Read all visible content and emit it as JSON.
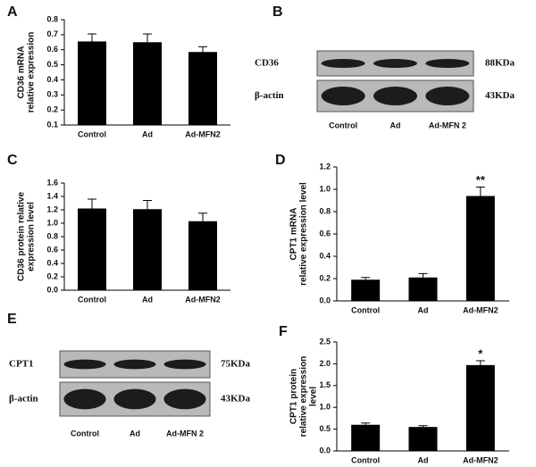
{
  "chart_data": [
    {
      "type": "bar",
      "panel": "A",
      "ylabel": [
        "CD36 mRNA",
        "relative expression"
      ],
      "categories": [
        "Control",
        "Ad",
        "Ad-MFN2"
      ],
      "series": [
        {
          "color": "#000000",
          "values": [
            0.655,
            0.65,
            0.585
          ],
          "errors": [
            0.05,
            0.055,
            0.035
          ]
        }
      ],
      "ylim": [
        0.1,
        0.8
      ],
      "yticks": [
        0.1,
        0.2,
        0.3,
        0.4,
        0.5,
        0.6,
        0.7,
        0.8
      ]
    },
    {
      "type": "bar",
      "panel": "C",
      "ylabel": [
        "CD36 protein relative",
        "expression level"
      ],
      "categories": [
        "Control",
        "Ad",
        "Ad-MFN2"
      ],
      "series": [
        {
          "color": "#000000",
          "values": [
            1.22,
            1.21,
            1.03
          ],
          "errors": [
            0.14,
            0.13,
            0.12
          ]
        }
      ],
      "ylim": [
        0,
        1.6
      ],
      "yticks": [
        {
          "value": 0,
          "label": "0.0"
        },
        0.2,
        0.4,
        0.6,
        0.8,
        {
          "value": 1,
          "label": "1.0"
        },
        1.2,
        1.4,
        1.6
      ]
    },
    {
      "type": "bar",
      "panel": "D",
      "ylabel": [
        "CPT1 mRNA",
        "relative expression level"
      ],
      "categories": [
        "Control",
        "Ad",
        "Ad-MFN2"
      ],
      "series": [
        {
          "color": "#000000",
          "values": [
            0.19,
            0.21,
            0.94
          ],
          "errors": [
            0.02,
            0.035,
            0.08
          ],
          "significance": [
            null,
            null,
            "**"
          ]
        }
      ],
      "ylim": [
        0,
        1.2
      ],
      "yticks": [
        {
          "value": 0,
          "label": "0.0"
        },
        0.2,
        0.4,
        0.6,
        0.8,
        {
          "value": 1,
          "label": "1.0"
        },
        1.2
      ]
    },
    {
      "type": "bar",
      "panel": "F",
      "ylabel": [
        "CPT1 protein",
        "relative expression",
        "level"
      ],
      "categories": [
        "Control",
        "Ad",
        "Ad-MFN2"
      ],
      "series": [
        {
          "color": "#000000",
          "values": [
            0.6,
            0.55,
            1.97
          ],
          "errors": [
            0.04,
            0.03,
            0.1
          ],
          "significance": [
            null,
            null,
            "*"
          ]
        }
      ],
      "ylim": [
        0,
        2.5
      ],
      "yticks": [
        {
          "value": 0,
          "label": "0.0"
        },
        0.5,
        {
          "value": 1,
          "label": "1.0"
        },
        1.5,
        {
          "value": 2,
          "label": "2.0"
        },
        2.5
      ]
    }
  ],
  "blots": [
    {
      "panel": "B",
      "rows": [
        {
          "label": "CD36",
          "size": "88KDa"
        },
        {
          "label": "β-actin",
          "size": "43KDa"
        }
      ],
      "lanes": [
        "Control",
        "Ad",
        "Ad-MFN 2"
      ]
    },
    {
      "panel": "E",
      "rows": [
        {
          "label": "CPT1",
          "size": "75KDa"
        },
        {
          "label": "β-actin",
          "size": "43KDa"
        }
      ],
      "lanes": [
        "Control",
        "Ad",
        "Ad-MFN 2"
      ]
    }
  ]
}
